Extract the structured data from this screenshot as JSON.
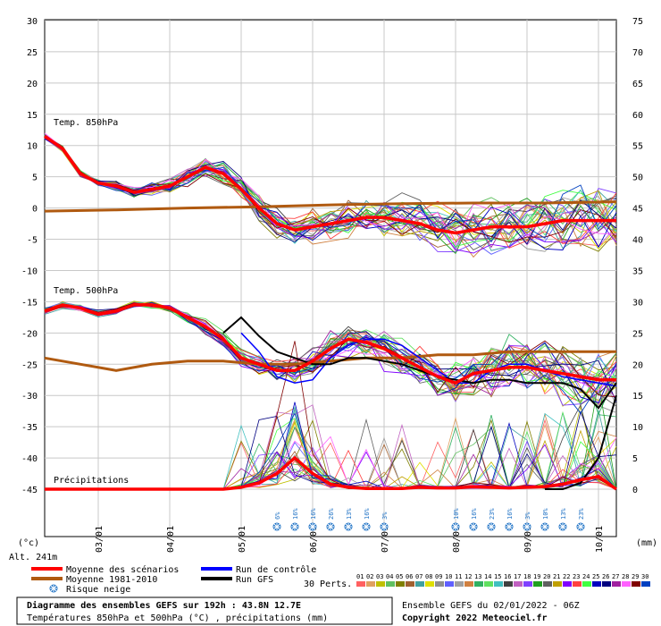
{
  "chart_data": {
    "type": "line",
    "left_axis_ticks": [
      "30",
      "25",
      "20",
      "15",
      "10",
      "5",
      "0",
      "-5",
      "-10",
      "-15",
      "-20",
      "-25",
      "-30",
      "-35",
      "-40",
      "-45"
    ],
    "right_axis_ticks": [
      "75",
      "70",
      "65",
      "60",
      "55",
      "50",
      "45",
      "40",
      "35",
      "30",
      "25",
      "20",
      "15",
      "10",
      "5",
      "0"
    ],
    "left_unit": "(°c)",
    "right_unit": "(mm)",
    "altitude": "Alt. 241m",
    "date_labels": [
      "03/01",
      "04/01",
      "05/01",
      "06/01",
      "07/01",
      "08/01",
      "09/01",
      "10/01"
    ],
    "section_labels": {
      "t850": "Temp. 850hPa",
      "t500": "Temp. 500hPa",
      "precip": "Précipitations"
    },
    "x_range_hours": [
      0,
      192
    ],
    "y_range_celsius": [
      -45,
      30
    ],
    "mean_850": {
      "x": [
        0,
        6,
        12,
        18,
        24,
        30,
        36,
        42,
        48,
        54,
        60,
        66,
        72,
        78,
        84,
        90,
        96,
        102,
        108,
        114,
        120,
        126,
        132,
        138,
        144,
        150,
        156,
        162,
        168,
        174,
        180,
        186,
        192
      ],
      "y": [
        11.5,
        9.5,
        5.5,
        4,
        3.5,
        2.5,
        3,
        3.5,
        5,
        6.5,
        5.5,
        3,
        0,
        -2.5,
        -3.5,
        -3,
        -2.5,
        -2,
        -1.5,
        -1.5,
        -2,
        -2.5,
        -3.5,
        -4,
        -3.5,
        -3,
        -3,
        -3,
        -2.5,
        -2,
        -2,
        -2,
        -2
      ]
    },
    "climatology_850": {
      "x": [
        0,
        24,
        48,
        72,
        96,
        120,
        144,
        168,
        192
      ],
      "y": [
        -0.5,
        -0.3,
        0,
        0.2,
        0.5,
        0.7,
        0.8,
        0.8,
        1
      ]
    },
    "mean_500": {
      "x": [
        0,
        6,
        12,
        18,
        24,
        30,
        36,
        42,
        48,
        54,
        60,
        66,
        72,
        78,
        84,
        90,
        96,
        102,
        108,
        114,
        120,
        126,
        132,
        138,
        144,
        150,
        156,
        162,
        168,
        174,
        180,
        186,
        192
      ],
      "y": [
        -16.5,
        -15.5,
        -16,
        -17,
        -16.5,
        -15.5,
        -15.5,
        -16,
        -17.5,
        -19,
        -21,
        -24,
        -25,
        -26,
        -26,
        -24.5,
        -22.5,
        -21,
        -21.5,
        -22.5,
        -24,
        -25.5,
        -27,
        -28,
        -26.5,
        -26,
        -25.5,
        -25.5,
        -26,
        -26.5,
        -27,
        -27.5,
        -27.5
      ]
    },
    "climatology_500": {
      "x": [
        0,
        12,
        24,
        36,
        48,
        60,
        72,
        84,
        96,
        108,
        120,
        132,
        144,
        156,
        168,
        180,
        192
      ],
      "y": [
        -24,
        -25,
        -26,
        -25,
        -24.5,
        -24.5,
        -25,
        -25,
        -24.5,
        -24,
        -24,
        -23.5,
        -23.5,
        -23,
        -23,
        -23,
        -23
      ]
    },
    "gfs_500": {
      "x": [
        60,
        66,
        72,
        78,
        84,
        90,
        96,
        102,
        108,
        114,
        120,
        126,
        132,
        138,
        144,
        150,
        156,
        162,
        168,
        174,
        180,
        186,
        192
      ],
      "y": [
        -20,
        -17.5,
        -20.5,
        -23,
        -24,
        -25,
        -25,
        -24,
        -24,
        -24.5,
        -25,
        -26,
        -27,
        -27.5,
        -28,
        -27.5,
        -27.5,
        -28,
        -28,
        -28,
        -29,
        -32,
        -28
      ]
    },
    "control_500": {
      "x": [
        66,
        72,
        78,
        84,
        90,
        96,
        102,
        108,
        114,
        120,
        126,
        132,
        138,
        144,
        150,
        156,
        162,
        168,
        174,
        180,
        186,
        192
      ],
      "y": [
        -20,
        -23,
        -27,
        -28,
        -27.5,
        -24,
        -22,
        -21,
        -21,
        -22,
        -24,
        -26,
        -28,
        -28,
        -26,
        -25,
        -25,
        -26,
        -27,
        -27.5,
        -28,
        -28.5
      ]
    },
    "mean_precip_mm": {
      "x": [
        0,
        12,
        24,
        36,
        48,
        60,
        66,
        72,
        78,
        84,
        90,
        96,
        102,
        108,
        114,
        120,
        126,
        132,
        138,
        144,
        150,
        156,
        162,
        168,
        174,
        180,
        186,
        192
      ],
      "y": [
        0,
        0,
        0,
        0,
        0,
        0,
        0.3,
        1,
        2.5,
        5,
        2.5,
        0.8,
        0.3,
        0.1,
        0.1,
        0.1,
        0.3,
        0.2,
        0.2,
        0.4,
        0.3,
        0.2,
        0.3,
        0.4,
        0.8,
        1.5,
        2,
        0
      ]
    },
    "gfs_precip_mm": {
      "x": [
        168,
        174,
        180,
        186,
        189,
        192
      ],
      "y": [
        0,
        0,
        1,
        5,
        10,
        15
      ]
    },
    "snow_risk": [
      {
        "x": 78,
        "pct": "6%"
      },
      {
        "x": 84,
        "pct": "16%"
      },
      {
        "x": 90,
        "pct": "16%"
      },
      {
        "x": 96,
        "pct": "26%"
      },
      {
        "x": 102,
        "pct": "13%"
      },
      {
        "x": 108,
        "pct": "16%"
      },
      {
        "x": 114,
        "pct": "3%"
      },
      {
        "x": 138,
        "pct": "10%"
      },
      {
        "x": 144,
        "pct": "16%"
      },
      {
        "x": 150,
        "pct": "23%"
      },
      {
        "x": 156,
        "pct": "16%"
      },
      {
        "x": 162,
        "pct": "3%"
      },
      {
        "x": 168,
        "pct": "10%"
      },
      {
        "x": 174,
        "pct": "13%"
      },
      {
        "x": 180,
        "pct": "23%"
      }
    ]
  },
  "legend": {
    "mean_scenarios": "Moyenne des scénarios",
    "mean_climatology": "Moyenne 1981-2010",
    "snow_risk": "Risque neige",
    "control_run": "Run de contrôle",
    "gfs_run": "Run GFS",
    "perts_label": "30 Perts.",
    "perturbations": [
      "01",
      "02",
      "03",
      "04",
      "05",
      "06",
      "07",
      "08",
      "09",
      "10",
      "11",
      "12",
      "13",
      "14",
      "15",
      "16",
      "17",
      "18",
      "19",
      "20",
      "21",
      "22",
      "23",
      "24",
      "25",
      "26",
      "27",
      "28",
      "29",
      "30"
    ]
  },
  "colors": {
    "mean": "#ff0000",
    "climatology": "#b05a10",
    "control": "#0000ff",
    "gfs": "#000000",
    "snow": "#1a6fc4",
    "perturbations": [
      "#ff6060",
      "#e0a060",
      "#c0c000",
      "#60c060",
      "#808000",
      "#a06030",
      "#40a0a0",
      "#e0e000",
      "#909090",
      "#6060ff",
      "#a0a0a0",
      "#d08040",
      "#30b060",
      "#60e060",
      "#40c0c0",
      "#404040",
      "#c060c0",
      "#8040ff",
      "#20a020",
      "#606060",
      "#c0a000",
      "#8000ff",
      "#ff4040",
      "#40ff40",
      "#0000c0",
      "#000080",
      "#a020a0",
      "#ff60ff",
      "#800000",
      "#0040c0"
    ]
  },
  "footer": {
    "title": "Diagramme des ensembles GEFS sur 192h : 43.8N 12.7E",
    "subtitle": "Températures 850hPa et 500hPa (°C) , précipitations (mm)",
    "run_info": "Ensemble GEFS du 02/01/2022 - 06Z",
    "copyright": "Copyright 2022 Meteociel.fr"
  }
}
